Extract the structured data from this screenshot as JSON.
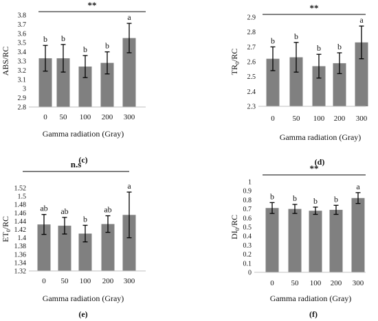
{
  "chart_data": [
    {
      "type": "bar",
      "caption": "(c)",
      "ylabel_main": "ABS/RC",
      "ylabel_sub": "",
      "ylabel_suffix": "",
      "xlabel": "Gamma radiation (Gray)",
      "categories": [
        "0",
        "50",
        "100",
        "200",
        "300"
      ],
      "values": [
        3.33,
        3.33,
        3.24,
        3.28,
        3.55
      ],
      "errors": [
        0.14,
        0.15,
        0.12,
        0.12,
        0.16
      ],
      "letters": [
        "b",
        "b",
        "b",
        "b",
        "a"
      ],
      "significance": "**",
      "ylim": [
        2.8,
        3.8
      ],
      "yticks": [
        "2.8",
        "2.9",
        "3",
        "3.1",
        "3.2",
        "3.3",
        "3.4",
        "3.5",
        "3.6",
        "3.7",
        "3.8"
      ],
      "grid": false,
      "bar_color": "#808080"
    },
    {
      "type": "bar",
      "caption": "(d)",
      "ylabel_main": "TR",
      "ylabel_sub": "0",
      "ylabel_suffix": "/RC",
      "xlabel": "Gamma radiation (Gray)",
      "categories": [
        "0",
        "50",
        "100",
        "200",
        "300"
      ],
      "values": [
        2.62,
        2.63,
        2.57,
        2.59,
        2.73
      ],
      "errors": [
        0.08,
        0.1,
        0.08,
        0.07,
        0.11
      ],
      "letters": [
        "b",
        "b",
        "b",
        "b",
        "a"
      ],
      "significance": "**",
      "ylim": [
        2.3,
        2.9
      ],
      "yticks": [
        "2.3",
        "2.4",
        "2.5",
        "2.6",
        "2.7",
        "2.8",
        "2.9"
      ],
      "grid": false,
      "bar_color": "#808080"
    },
    {
      "type": "bar",
      "caption": "(e)",
      "ylabel_main": "ET",
      "ylabel_sub": "0",
      "ylabel_suffix": "/RC",
      "xlabel": "Gamma radiation (Gray)",
      "categories": [
        "0",
        "50",
        "100",
        "200",
        "300"
      ],
      "values": [
        1.432,
        1.429,
        1.41,
        1.433,
        1.455
      ],
      "errors": [
        0.024,
        0.02,
        0.02,
        0.02,
        0.055
      ],
      "letters": [
        "ab",
        "ab",
        "b",
        "ab",
        "a"
      ],
      "significance": "n.s",
      "ylim": [
        1.32,
        1.52
      ],
      "yticks": [
        "1.32",
        "1.34",
        "1.36",
        "1.38",
        "1.4",
        "1.42",
        "1.44",
        "1.46",
        "1.48",
        "1.5",
        "1.52"
      ],
      "grid": false,
      "bar_color": "#808080"
    },
    {
      "type": "bar",
      "caption": "(f)",
      "ylabel_main": "DI",
      "ylabel_sub": "0",
      "ylabel_suffix": "/RC",
      "xlabel": "Gamma radiation (Gray)",
      "categories": [
        "0",
        "50",
        "100",
        "200",
        "300"
      ],
      "values": [
        0.71,
        0.7,
        0.68,
        0.69,
        0.82
      ],
      "errors": [
        0.06,
        0.05,
        0.04,
        0.05,
        0.06
      ],
      "letters": [
        "b",
        "b",
        "b",
        "b",
        "a"
      ],
      "significance": "**",
      "ylim": [
        0,
        1
      ],
      "yticks": [
        "0",
        "0.1",
        "0.2",
        "0.3",
        "0.4",
        "0.5",
        "0.6",
        "0.7",
        "0.8",
        "0.9",
        "1"
      ],
      "grid": false,
      "bar_color": "#808080"
    }
  ]
}
